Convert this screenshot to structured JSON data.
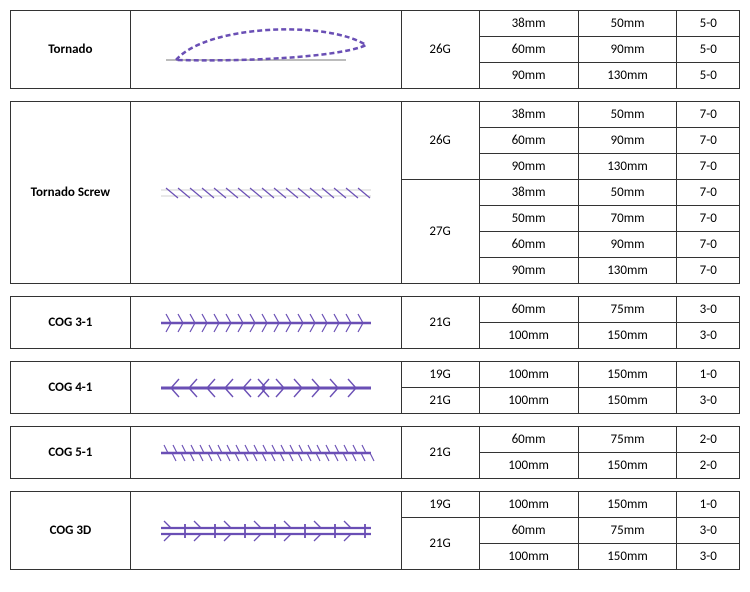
{
  "thread_color": "#6a4fb5",
  "border_color": "#333333",
  "font_family": "Calibri",
  "cell_fontsize": 13,
  "products": [
    {
      "name": "Tornado",
      "illustration": "loop",
      "gauges": [
        {
          "g": "26G",
          "rows": [
            {
              "a": "38mm",
              "b": "50mm",
              "c": "5-0"
            },
            {
              "a": "60mm",
              "b": "90mm",
              "c": "5-0"
            },
            {
              "a": "90mm",
              "b": "130mm",
              "c": "5-0"
            }
          ]
        }
      ]
    },
    {
      "name": "Tornado Screw",
      "illustration": "screw",
      "gauges": [
        {
          "g": "26G",
          "rows": [
            {
              "a": "38mm",
              "b": "50mm",
              "c": "7-0"
            },
            {
              "a": "60mm",
              "b": "90mm",
              "c": "7-0"
            },
            {
              "a": "90mm",
              "b": "130mm",
              "c": "7-0"
            }
          ]
        },
        {
          "g": "27G",
          "rows": [
            {
              "a": "38mm",
              "b": "50mm",
              "c": "7-0"
            },
            {
              "a": "50mm",
              "b": "70mm",
              "c": "7-0"
            },
            {
              "a": "60mm",
              "b": "90mm",
              "c": "7-0"
            },
            {
              "a": "90mm",
              "b": "130mm",
              "c": "7-0"
            }
          ]
        }
      ]
    },
    {
      "name": "COG 3-1",
      "illustration": "cog31",
      "gauges": [
        {
          "g": "21G",
          "rows": [
            {
              "a": "60mm",
              "b": "75mm",
              "c": "3-0"
            },
            {
              "a": "100mm",
              "b": "150mm",
              "c": "3-0"
            }
          ]
        }
      ]
    },
    {
      "name": "COG 4-1",
      "illustration": "cog41",
      "gauges": [
        {
          "g": "19G",
          "rows": [
            {
              "a": "100mm",
              "b": "150mm",
              "c": "1-0"
            }
          ]
        },
        {
          "g": "21G",
          "rows": [
            {
              "a": "100mm",
              "b": "150mm",
              "c": "3-0"
            }
          ]
        }
      ]
    },
    {
      "name": "COG 5-1",
      "illustration": "cog51",
      "gauges": [
        {
          "g": "21G",
          "rows": [
            {
              "a": "60mm",
              "b": "75mm",
              "c": "2-0"
            },
            {
              "a": "100mm",
              "b": "150mm",
              "c": "2-0"
            }
          ]
        }
      ]
    },
    {
      "name": "COG 3D",
      "illustration": "cog3d",
      "gauges": [
        {
          "g": "19G",
          "rows": [
            {
              "a": "100mm",
              "b": "150mm",
              "c": "1-0"
            }
          ]
        },
        {
          "g": "21G",
          "rows": [
            {
              "a": "60mm",
              "b": "75mm",
              "c": "3-0"
            },
            {
              "a": "100mm",
              "b": "150mm",
              "c": "3-0"
            }
          ]
        }
      ]
    }
  ]
}
